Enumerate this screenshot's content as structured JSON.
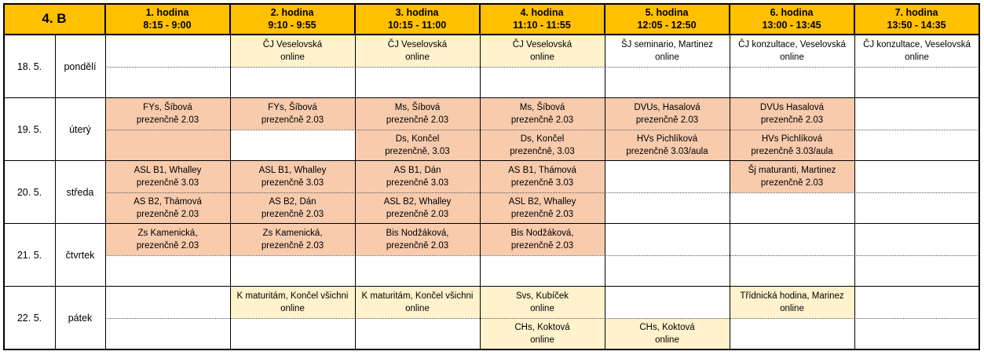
{
  "class": "4. B",
  "periods": [
    {
      "name": "1. hodina",
      "time": "8:15 - 9:00"
    },
    {
      "name": "2. hodina",
      "time": "9:10 - 9:55"
    },
    {
      "name": "3. hodina",
      "time": "10:15 - 11:00"
    },
    {
      "name": "4. hodina",
      "time": "11:10 - 11:55"
    },
    {
      "name": "5. hodina",
      "time": "12:05 - 12:50"
    },
    {
      "name": "6. hodina",
      "time": "13:00 - 13:45"
    },
    {
      "name": "7. hodina",
      "time": "13:50 - 14:35"
    }
  ],
  "days": [
    {
      "date": "18. 5.",
      "day": "pondělí",
      "top": [
        null,
        {
          "color": "#fff2cc",
          "lines": [
            "ČJ Veselovská",
            "online"
          ]
        },
        {
          "color": "#fff2cc",
          "lines": [
            "ČJ Veselovská",
            "online"
          ]
        },
        {
          "color": "#fff2cc",
          "lines": [
            "ČJ Veselovská",
            "online"
          ]
        },
        {
          "color": "#ffffff",
          "lines": [
            "ŠJ seminario, Martinez",
            "online"
          ]
        },
        {
          "color": "#ffffff",
          "lines": [
            "ČJ konzultace, Veselovská",
            "online"
          ]
        },
        {
          "color": "#ffffff",
          "lines": [
            "ČJ konzultace, Veselovská",
            "online"
          ]
        }
      ],
      "bottom": [
        null,
        null,
        null,
        null,
        null,
        null,
        null
      ]
    },
    {
      "date": "19. 5.",
      "day": "úterý",
      "top": [
        {
          "color": "#f8cbad",
          "lines": [
            "FYs, Šíbová",
            "prezenčně 2.03"
          ]
        },
        {
          "color": "#f8cbad",
          "lines": [
            "FYs, Šíbová",
            "prezenčně 2.03"
          ]
        },
        {
          "color": "#f8cbad",
          "lines": [
            "Ms, Šíbová",
            "prezenčně 2.03"
          ]
        },
        {
          "color": "#f8cbad",
          "lines": [
            "Ms, Šíbová",
            "prezenčně 2.03"
          ]
        },
        {
          "color": "#f8cbad",
          "lines": [
            "DVUs, Hasalová",
            "prezenčně 2.03"
          ]
        },
        {
          "color": "#f8cbad",
          "lines": [
            "DVUs Hasalová",
            "prezenčně 2.03"
          ]
        },
        null
      ],
      "bottom": [
        {
          "color": "#f8cbad"
        },
        null,
        {
          "color": "#f8cbad",
          "lines": [
            "Ds, Končel",
            "prezenčně, 3.03"
          ]
        },
        {
          "color": "#f8cbad",
          "lines": [
            "Ds, Končel",
            "prezenčně, 3.03"
          ]
        },
        {
          "color": "#f8cbad",
          "lines": [
            "HVs Pichlíková",
            "prezenčně 3.03/aula"
          ]
        },
        {
          "color": "#f8cbad",
          "lines": [
            "HVs Pichlíková",
            "prezenčně 3.03/aula"
          ]
        },
        null
      ]
    },
    {
      "date": "20. 5.",
      "day": "středa",
      "top": [
        {
          "color": "#f8cbad",
          "lines": [
            "ASL B1, Whalley",
            "prezenčně 3.03"
          ]
        },
        {
          "color": "#f8cbad",
          "lines": [
            "ASL B1, Whalley",
            "prezenčně 3.03"
          ]
        },
        {
          "color": "#f8cbad",
          "lines": [
            "AS B1, Dán",
            "prezenčně 3.03"
          ]
        },
        {
          "color": "#f8cbad",
          "lines": [
            "AS B1, Thámová",
            "prezenčně 3.03"
          ]
        },
        null,
        {
          "color": "#f8cbad",
          "lines": [
            "Šj maturanti, Martinez",
            "prezenčně 2.03"
          ]
        },
        null
      ],
      "bottom": [
        {
          "color": "#f8cbad",
          "lines": [
            "AS B2, Thámová",
            "prezenčně 2.03"
          ]
        },
        {
          "color": "#f8cbad",
          "lines": [
            "AS B2, Dán",
            "prezenčně 2.03"
          ]
        },
        {
          "color": "#f8cbad",
          "lines": [
            "ASL B2, Whalley",
            "prezenčně 2.03"
          ]
        },
        {
          "color": "#f8cbad",
          "lines": [
            "ASL B2, Whalley",
            "prezenčně 2.03"
          ]
        },
        null,
        null,
        null
      ]
    },
    {
      "date": "21. 5.",
      "day": "čtvrtek",
      "top": [
        {
          "color": "#f8cbad",
          "lines": [
            "Zs Kamenická,",
            "prezenčně 2.03"
          ]
        },
        {
          "color": "#f8cbad",
          "lines": [
            "Zs Kamenická,",
            "prezenčně 2.03"
          ]
        },
        {
          "color": "#f8cbad",
          "lines": [
            "Bis Nodžáková,",
            "prezenčně 2.03"
          ]
        },
        {
          "color": "#f8cbad",
          "lines": [
            "Bis Nodžáková,",
            "prezenčně 2.03"
          ]
        },
        null,
        null,
        null
      ],
      "bottom": [
        null,
        null,
        null,
        null,
        null,
        null,
        null
      ]
    },
    {
      "date": "22. 5.",
      "day": "pátek",
      "top": [
        null,
        {
          "color": "#fff2cc",
          "lines": [
            "K maturitám, Končel všichni",
            "online"
          ]
        },
        {
          "color": "#fff2cc",
          "lines": [
            "K maturitám, Končel všichni",
            "online"
          ]
        },
        {
          "color": "#fff2cc",
          "lines": [
            "Svs, Kubíček",
            "online"
          ]
        },
        null,
        {
          "color": "#fff2cc",
          "lines": [
            "Třídnická hodina, Marinez",
            "online"
          ]
        },
        null
      ],
      "bottom": [
        null,
        null,
        null,
        {
          "color": "#fff2cc",
          "lines": [
            "CHs, Koktová",
            "online"
          ]
        },
        {
          "color": "#fff2cc",
          "lines": [
            "CHs, Koktová",
            "online"
          ]
        },
        null,
        null
      ]
    }
  ]
}
